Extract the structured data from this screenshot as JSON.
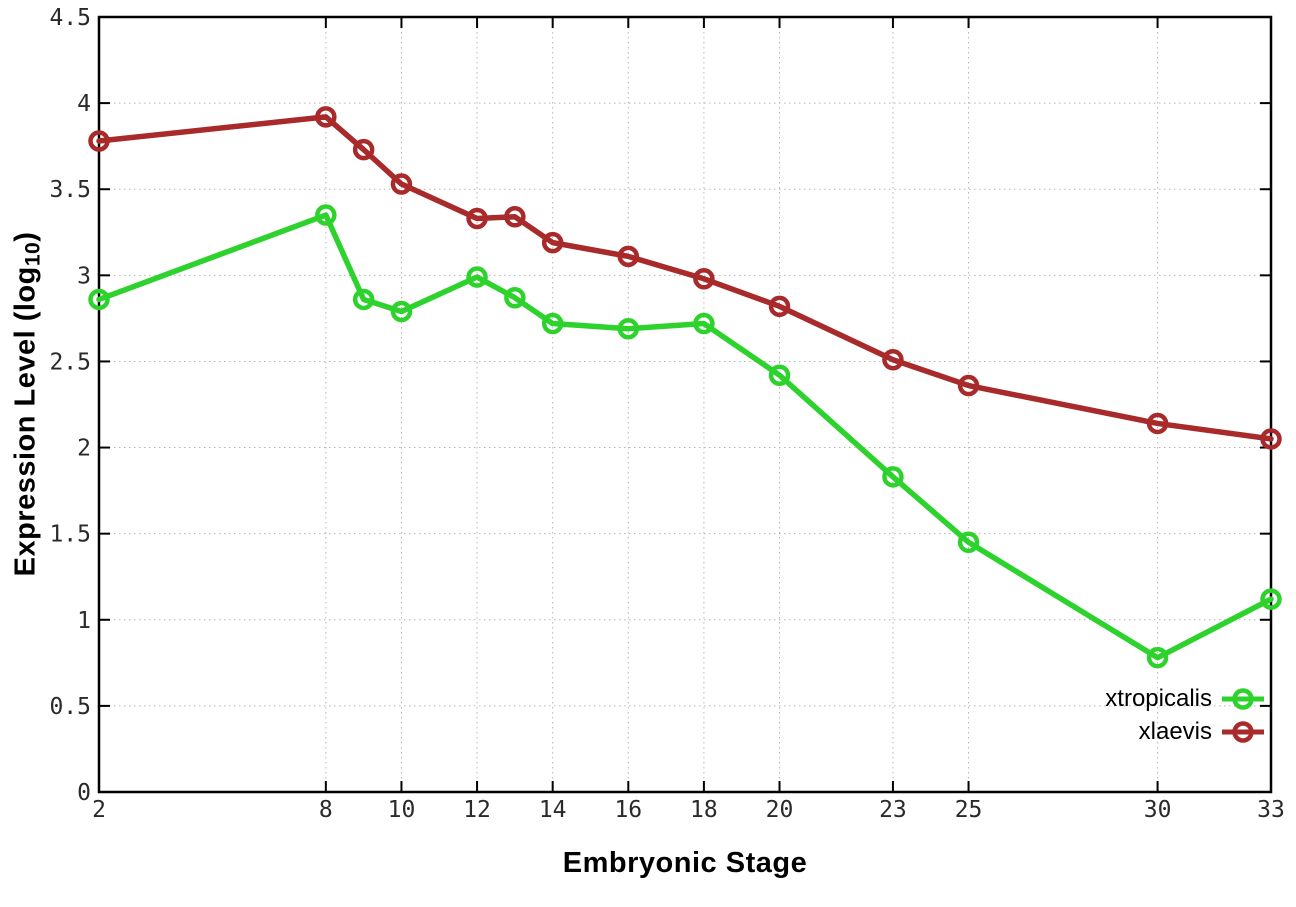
{
  "chart_data": {
    "type": "line",
    "title": "",
    "xlabel": "Embryonic Stage",
    "ylabel": "Expression Level (log10)",
    "ylabel_prefix": "Expression Level (log",
    "ylabel_sub": "10",
    "ylabel_suffix": ")",
    "xlim": [
      2,
      33
    ],
    "ylim": [
      0,
      4.5
    ],
    "x_ticks": [
      2,
      8,
      10,
      12,
      14,
      16,
      18,
      20,
      23,
      25,
      30,
      33
    ],
    "y_ticks": [
      0,
      0.5,
      1,
      1.5,
      2,
      2.5,
      3,
      3.5,
      4,
      4.5
    ],
    "grid": true,
    "grid_style": "dotted",
    "legend_position": "bottom-right",
    "x": [
      2,
      8,
      9,
      10,
      12,
      13,
      14,
      16,
      18,
      20,
      23,
      25,
      30,
      33
    ],
    "series": [
      {
        "name": "xtropicalis",
        "color": "#2dd22d",
        "marker": "open-circle",
        "values": [
          2.86,
          3.35,
          2.86,
          2.79,
          2.99,
          2.87,
          2.72,
          2.69,
          2.72,
          2.42,
          1.83,
          1.45,
          0.78,
          1.12
        ]
      },
      {
        "name": "xlaevis",
        "color": "#a82a2a",
        "marker": "open-circle",
        "values": [
          3.78,
          3.92,
          3.73,
          3.53,
          3.33,
          3.34,
          3.19,
          3.11,
          2.98,
          2.82,
          2.51,
          2.36,
          2.14,
          2.05
        ]
      }
    ],
    "style_colors": {
      "grid": "#b5b5b5",
      "border": "#000000",
      "tick_label": "#2a2a2a",
      "background": "#ffffff"
    }
  }
}
